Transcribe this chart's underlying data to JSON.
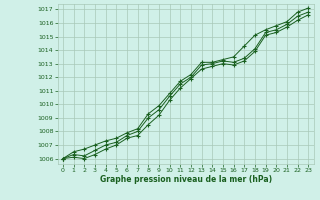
{
  "title": "Graphe pression niveau de la mer (hPa)",
  "background_color": "#d0f0e8",
  "grid_color": "#a8c8b8",
  "line_color": "#1a6020",
  "xticks": [
    0,
    1,
    2,
    3,
    4,
    5,
    6,
    7,
    8,
    9,
    10,
    11,
    12,
    13,
    14,
    15,
    16,
    17,
    18,
    19,
    20,
    21,
    22,
    23
  ],
  "yticks": [
    1006,
    1007,
    1008,
    1009,
    1010,
    1011,
    1012,
    1013,
    1014,
    1015,
    1016,
    1017
  ],
  "series1": [
    1006.0,
    1006.5,
    1006.7,
    1007.0,
    1007.3,
    1007.5,
    1007.9,
    1008.2,
    1009.3,
    1009.9,
    1010.8,
    1011.7,
    1012.2,
    1013.1,
    1013.1,
    1013.3,
    1013.5,
    1014.3,
    1015.1,
    1015.5,
    1015.8,
    1016.1,
    1016.8,
    1017.1
  ],
  "series2": [
    1006.0,
    1006.3,
    1006.2,
    1006.6,
    1007.0,
    1007.2,
    1007.7,
    1008.0,
    1009.0,
    1009.6,
    1010.6,
    1011.5,
    1012.0,
    1012.9,
    1013.0,
    1013.2,
    1013.1,
    1013.4,
    1014.1,
    1015.3,
    1015.5,
    1015.9,
    1016.5,
    1016.8
  ],
  "series3": [
    1006.0,
    1006.1,
    1006.0,
    1006.3,
    1006.7,
    1007.0,
    1007.5,
    1007.7,
    1008.5,
    1009.2,
    1010.3,
    1011.2,
    1011.9,
    1012.6,
    1012.8,
    1013.0,
    1012.9,
    1013.2,
    1013.9,
    1015.1,
    1015.3,
    1015.7,
    1016.2,
    1016.6
  ]
}
